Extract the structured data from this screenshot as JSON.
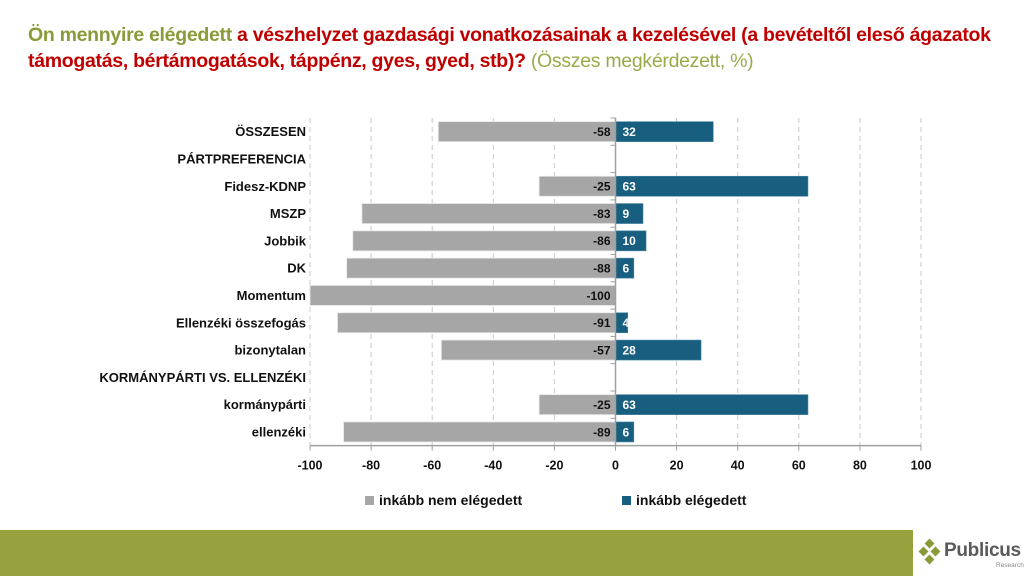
{
  "title": {
    "part1_green": "Ön mennyire elégedett",
    "part2_red": " a vészhelyzet gazdasági vonatkozásainak a kezelésével (a bevételtől eleső ágazatok támogatás, bértámogatások, táppénz, gyes, gyed, stb)?",
    "part3_sub": " (Összes megkérdezett, %)"
  },
  "chart_data": {
    "type": "bar",
    "orientation": "horizontal-diverging",
    "title": "Ön mennyire elégedett a vészhelyzet gazdasági vonatkozásainak a kezelésével (a bevételtől eleső ágazatok támogatás, bértámogatások, táppénz, gyes, gyed, stb)? (Összes megkérdezett, %)",
    "xlabel": "",
    "ylabel": "",
    "xlim": [
      -100,
      100
    ],
    "xticks": [
      -100,
      -80,
      -60,
      -40,
      -20,
      0,
      20,
      40,
      60,
      80,
      100
    ],
    "grid": "vertical dashed",
    "legend_position": "bottom",
    "categories": [
      "ÖSSZESEN",
      "PÁRTPREFERENCIA",
      "Fidesz-KDNP",
      "MSZP",
      "Jobbik",
      "DK",
      "Momentum",
      "Ellenzéki összefogás",
      "bizonytalan",
      "KORMÁNYPÁRTI VS. ELLENZÉKI",
      "kormánypárti",
      "ellenzéki"
    ],
    "series": [
      {
        "name": "inkább nem elégedett",
        "color": "#a6a6a6",
        "values": [
          -58,
          null,
          -25,
          -83,
          -86,
          -88,
          -100,
          -91,
          -57,
          null,
          -25,
          -89
        ]
      },
      {
        "name": "inkább elégedett",
        "color": "#175e7f",
        "values": [
          32,
          null,
          63,
          9,
          10,
          6,
          0,
          4,
          28,
          null,
          63,
          6
        ]
      }
    ]
  },
  "legend": [
    {
      "label": "inkább nem elégedett",
      "color": "#a6a6a6"
    },
    {
      "label": "inkább elégedett",
      "color": "#175e7f"
    }
  ],
  "logo": {
    "name": "Publicus",
    "sub": "Research"
  },
  "colors": {
    "footer": "#97a13e",
    "title_green": "#8a9a38",
    "title_red": "#c00000"
  }
}
